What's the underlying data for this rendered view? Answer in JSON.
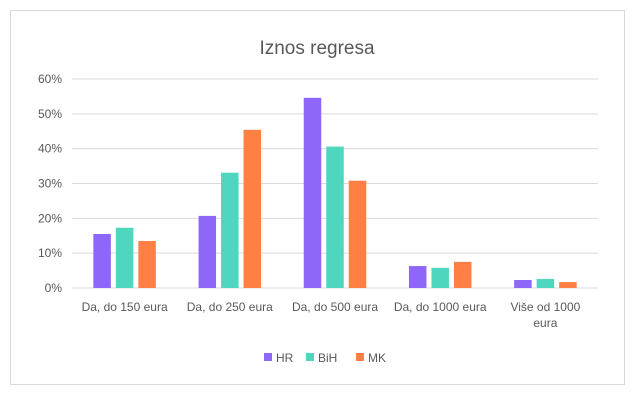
{
  "chart_data": {
    "type": "bar",
    "title": "Iznos regresa",
    "categories": [
      [
        "Da, do 150 eura"
      ],
      [
        "Da, do 250 eura"
      ],
      [
        "Da, do 500 eura"
      ],
      [
        "Da, do 1000 eura"
      ],
      [
        "Više od 1000",
        "eura"
      ]
    ],
    "series": [
      {
        "name": "HR",
        "color": "#8E66F8",
        "values": [
          15.5,
          20.7,
          54.6,
          6.3,
          2.3
        ]
      },
      {
        "name": "BiH",
        "color": "#4FD6BE",
        "values": [
          17.3,
          33.1,
          40.6,
          5.8,
          2.6
        ]
      },
      {
        "name": "MK",
        "color": "#FF7F44",
        "values": [
          13.5,
          45.4,
          30.8,
          7.5,
          1.7
        ]
      }
    ],
    "ylim": [
      0,
      60
    ],
    "yticks": [
      "0%",
      "10%",
      "20%",
      "30%",
      "40%",
      "50%",
      "60%"
    ],
    "grid": true,
    "legend_position": "bottom",
    "xlabel": "",
    "ylabel": ""
  }
}
